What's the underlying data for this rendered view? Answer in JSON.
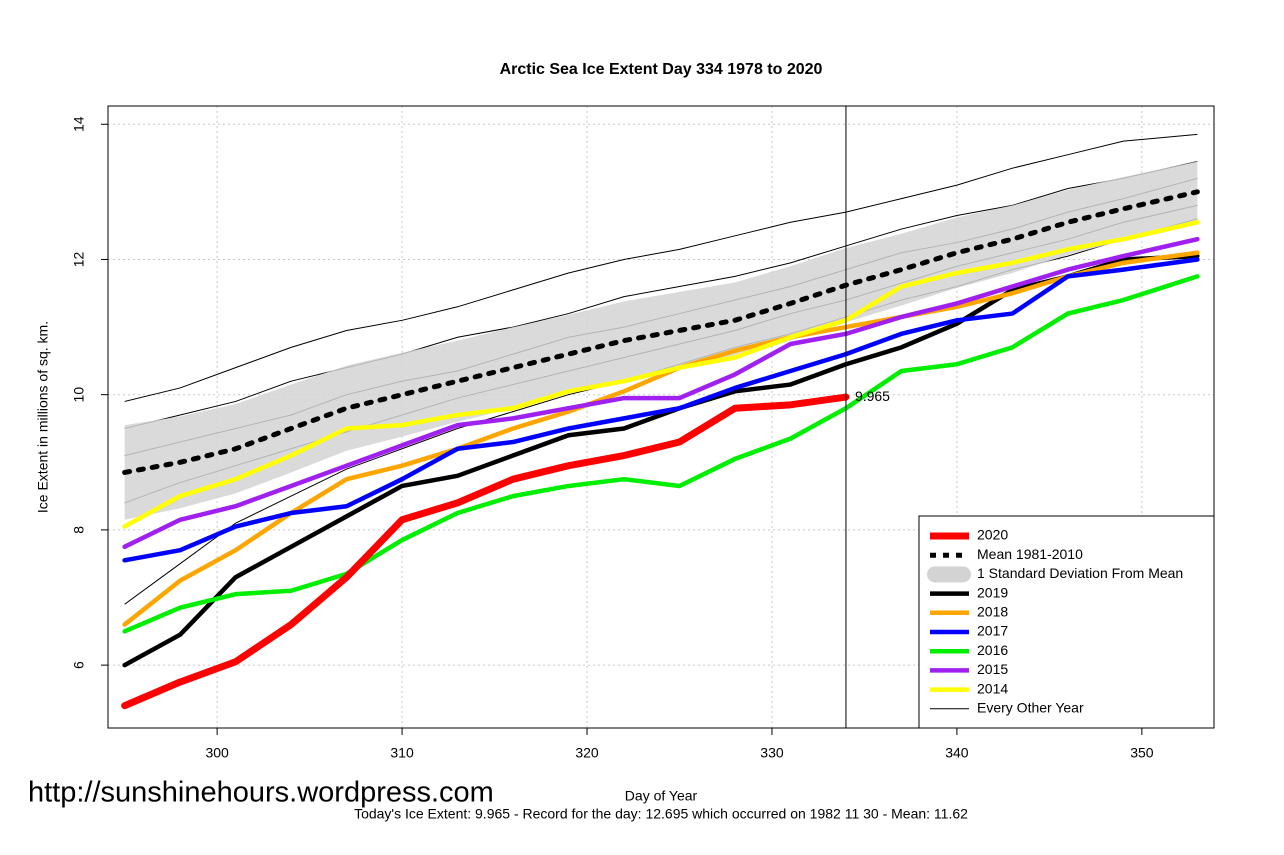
{
  "chart_data": {
    "type": "line",
    "title": "Arctic Sea Ice Extent Day 334 1978 to 2020",
    "x_label": "Day of Year",
    "y_label": "Ice Extent in millions of sq. km.",
    "footnote": "Today's Ice Extent: 9.965  - Record for the day: 12.695 which occurred on 1982 11 30  - Mean: 11.62",
    "watermark": "http://sunshinehours.wordpress.com",
    "vline": 334,
    "annotation": {
      "text": "9.965",
      "x": 334,
      "y": 9.965,
      "color": "#ff2020"
    },
    "x": [
      295,
      298,
      301,
      304,
      307,
      310,
      313,
      316,
      319,
      322,
      325,
      328,
      331,
      334,
      337,
      340,
      343,
      346,
      349,
      353
    ],
    "xlim": [
      294.1,
      353.9
    ],
    "ylim": [
      5.07,
      14.27
    ],
    "xticks": [
      300,
      310,
      320,
      330,
      340,
      350
    ],
    "yticks": [
      6,
      8,
      10,
      12,
      14
    ],
    "grid": true,
    "legend": "bottom-right",
    "series": [
      {
        "name": "2020",
        "color": "#ff0000",
        "width": 7,
        "values": [
          5.4,
          5.75,
          6.05,
          6.6,
          7.3,
          8.15,
          8.4,
          8.75,
          8.95,
          9.1,
          9.3,
          9.8,
          9.85,
          9.965,
          null,
          null,
          null,
          null,
          null,
          null
        ]
      },
      {
        "name": "Mean 1981-2010",
        "color": "#000000",
        "width": 5,
        "style": "dashed",
        "values": [
          8.85,
          9.0,
          9.2,
          9.5,
          9.8,
          10.0,
          10.2,
          10.4,
          10.6,
          10.8,
          10.95,
          11.1,
          11.35,
          11.62,
          11.85,
          12.1,
          12.3,
          12.55,
          12.75,
          13.0
        ]
      },
      {
        "name": "1 Standard Deviation From Mean",
        "color": "#d3d3d3",
        "style": "band",
        "values": [
          0.7,
          0.68,
          0.66,
          0.65,
          0.63,
          0.62,
          0.6,
          0.6,
          0.58,
          0.58,
          0.57,
          0.56,
          0.55,
          0.55,
          0.53,
          0.52,
          0.5,
          0.48,
          0.47,
          0.45
        ]
      },
      {
        "name": "2019",
        "color": "#000000",
        "width": 4.5,
        "values": [
          6.0,
          6.45,
          7.3,
          7.75,
          8.2,
          8.65,
          8.8,
          9.1,
          9.4,
          9.5,
          9.8,
          10.05,
          10.15,
          10.45,
          10.7,
          11.05,
          11.55,
          11.75,
          12.0,
          12.05
        ]
      },
      {
        "name": "2018",
        "color": "#ffa500",
        "width": 4.5,
        "values": [
          6.6,
          7.25,
          7.7,
          8.25,
          8.75,
          8.95,
          9.2,
          9.5,
          9.75,
          10.05,
          10.4,
          10.65,
          10.85,
          11.0,
          11.15,
          11.3,
          11.5,
          11.75,
          11.95,
          12.1
        ]
      },
      {
        "name": "2017",
        "color": "#0000ff",
        "width": 4.5,
        "values": [
          7.55,
          7.7,
          8.05,
          8.25,
          8.35,
          8.75,
          9.2,
          9.3,
          9.5,
          9.65,
          9.8,
          10.1,
          10.35,
          10.6,
          10.9,
          11.1,
          11.2,
          11.75,
          11.85,
          12.0
        ]
      },
      {
        "name": "2016",
        "color": "#00ee00",
        "width": 4.5,
        "values": [
          6.5,
          6.85,
          7.05,
          7.1,
          7.35,
          7.85,
          8.25,
          8.5,
          8.65,
          8.75,
          8.65,
          9.05,
          9.35,
          9.8,
          10.35,
          10.45,
          10.7,
          11.2,
          11.4,
          11.75
        ]
      },
      {
        "name": "2015",
        "color": "#a020f0",
        "width": 4.5,
        "values": [
          7.75,
          8.15,
          8.35,
          8.65,
          8.95,
          9.25,
          9.55,
          9.65,
          9.8,
          9.95,
          9.95,
          10.3,
          10.75,
          10.9,
          11.15,
          11.35,
          11.6,
          11.85,
          12.05,
          12.3
        ]
      },
      {
        "name": "2014",
        "color": "#ffff00",
        "width": 4.5,
        "values": [
          8.05,
          8.5,
          8.75,
          9.1,
          9.5,
          9.55,
          9.7,
          9.8,
          10.05,
          10.2,
          10.4,
          10.55,
          10.85,
          11.1,
          11.6,
          11.8,
          11.95,
          12.15,
          12.3,
          12.55
        ]
      },
      {
        "name": "Every Other Year",
        "color": "#000000",
        "width": 1,
        "style": "multi",
        "values": [
          [
            9.9,
            10.1,
            10.4,
            10.7,
            10.95,
            11.1,
            11.3,
            11.55,
            11.8,
            12.0,
            12.15,
            12.35,
            12.55,
            12.7,
            12.9,
            13.1,
            13.35,
            13.55,
            13.75,
            13.85
          ],
          [
            9.5,
            9.7,
            9.9,
            10.2,
            10.4,
            10.6,
            10.85,
            11.0,
            11.2,
            11.45,
            11.6,
            11.75,
            11.95,
            12.2,
            12.45,
            12.65,
            12.8,
            13.05,
            13.2,
            13.45
          ],
          [
            9.1,
            9.3,
            9.5,
            9.7,
            10.0,
            10.2,
            10.35,
            10.6,
            10.85,
            11.0,
            11.2,
            11.4,
            11.6,
            11.85,
            12.1,
            12.25,
            12.45,
            12.7,
            12.9,
            13.2
          ],
          [
            8.4,
            8.7,
            8.95,
            9.2,
            9.45,
            9.7,
            9.95,
            10.15,
            10.35,
            10.55,
            10.75,
            10.95,
            11.2,
            11.4,
            11.65,
            11.9,
            12.1,
            12.3,
            12.55,
            12.8
          ],
          [
            6.9,
            7.5,
            8.1,
            8.5,
            8.9,
            9.2,
            9.5,
            9.75,
            10.0,
            10.2,
            10.45,
            10.7,
            10.9,
            11.15,
            11.4,
            11.6,
            11.85,
            12.05,
            12.3,
            12.6
          ]
        ]
      }
    ]
  }
}
